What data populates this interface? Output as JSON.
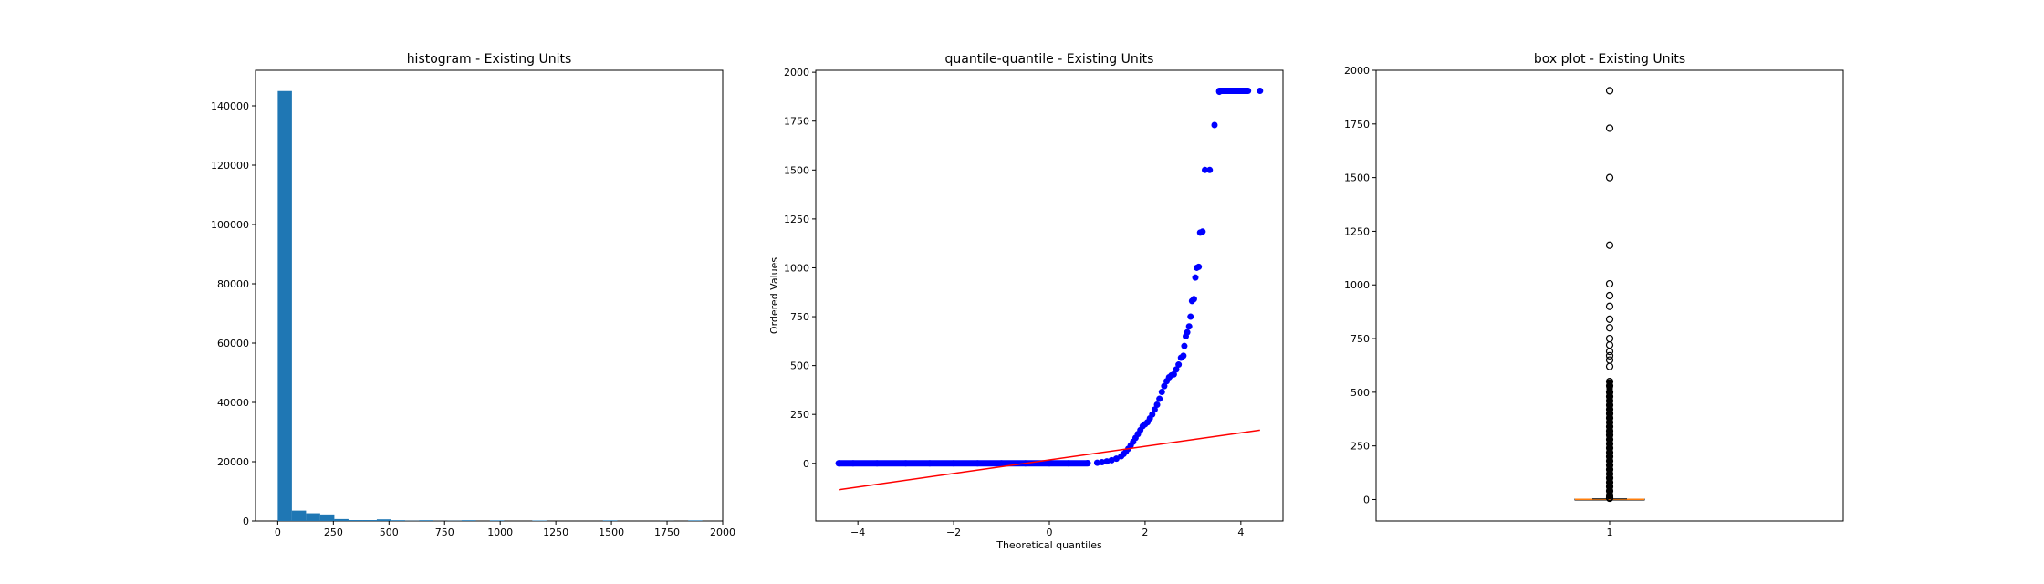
{
  "colors": {
    "bar": "#1f77b4",
    "qq_points": "#0000ff",
    "qq_line": "#ff0000",
    "median": "#ff7f0e",
    "axes": "#000000"
  },
  "chart_data": [
    {
      "type": "bar",
      "title": "histogram - Existing Units",
      "xlabel": "",
      "ylabel": "",
      "xlim": [
        -100,
        2000
      ],
      "ylim": [
        0,
        152000
      ],
      "x_ticks": [
        0,
        250,
        500,
        750,
        1000,
        1250,
        1500,
        1750,
        2000
      ],
      "x_tick_labels": [
        "0",
        "250",
        "500",
        "750",
        "1000",
        "1250",
        "1500",
        "1750",
        "2000"
      ],
      "y_ticks": [
        0,
        20000,
        40000,
        60000,
        80000,
        100000,
        120000,
        140000
      ],
      "y_tick_labels": [
        "0",
        "20000",
        "40000",
        "60000",
        "80000",
        "100000",
        "120000",
        "140000"
      ],
      "bins": [
        {
          "x0": 0,
          "x1": 63.6,
          "count": 145000
        },
        {
          "x0": 63.6,
          "x1": 127.2,
          "count": 3500
        },
        {
          "x0": 127.2,
          "x1": 190.8,
          "count": 2600
        },
        {
          "x0": 190.8,
          "x1": 254.4,
          "count": 2200
        },
        {
          "x0": 254.4,
          "x1": 318,
          "count": 650
        },
        {
          "x0": 318,
          "x1": 381.6,
          "count": 300
        },
        {
          "x0": 381.6,
          "x1": 445.2,
          "count": 300
        },
        {
          "x0": 445.2,
          "x1": 508.8,
          "count": 550
        },
        {
          "x0": 508.8,
          "x1": 572.4,
          "count": 250
        },
        {
          "x0": 572.4,
          "x1": 636,
          "count": 80
        },
        {
          "x0": 636,
          "x1": 699.6,
          "count": 250
        },
        {
          "x0": 699.6,
          "x1": 763.2,
          "count": 40
        },
        {
          "x0": 763.2,
          "x1": 826.8,
          "count": 80
        },
        {
          "x0": 826.8,
          "x1": 890.4,
          "count": 250
        },
        {
          "x0": 953.4,
          "x1": 1017,
          "count": 200
        },
        {
          "x0": 1144,
          "x1": 1208,
          "count": 150
        },
        {
          "x0": 1462,
          "x1": 1526,
          "count": 200
        },
        {
          "x0": 1717,
          "x1": 1781,
          "count": 40
        },
        {
          "x0": 1845,
          "x1": 1908,
          "count": 200
        }
      ]
    },
    {
      "type": "scatter",
      "title": "quantile-quantile - Existing Units",
      "xlabel": "Theoretical quantiles",
      "ylabel": "Ordered Values",
      "xlim": [
        -4.88,
        4.88
      ],
      "ylim": [
        -295,
        2010
      ],
      "x_ticks": [
        -4,
        -2,
        0,
        2,
        4
      ],
      "x_tick_labels": [
        "−4",
        "−2",
        "0",
        "2",
        "4"
      ],
      "y_ticks": [
        0,
        250,
        500,
        750,
        1000,
        1250,
        1500,
        1750,
        2000
      ],
      "y_tick_labels": [
        "0",
        "250",
        "500",
        "750",
        "1000",
        "1250",
        "1500",
        "1750",
        "2000"
      ],
      "points": [
        [
          -4.4,
          0
        ],
        [
          -4.1,
          0
        ],
        [
          -3.6,
          0
        ],
        [
          -3.0,
          0
        ],
        [
          -2.5,
          0
        ],
        [
          -2.0,
          0
        ],
        [
          -1.5,
          0
        ],
        [
          -1.0,
          0
        ],
        [
          -0.5,
          0
        ],
        [
          0.0,
          0
        ],
        [
          0.4,
          0
        ],
        [
          0.8,
          1
        ],
        [
          1.0,
          3
        ],
        [
          1.1,
          6
        ],
        [
          1.2,
          10
        ],
        [
          1.3,
          16
        ],
        [
          1.4,
          24
        ],
        [
          1.5,
          36
        ],
        [
          1.55,
          48
        ],
        [
          1.6,
          60
        ],
        [
          1.65,
          75
        ],
        [
          1.7,
          92
        ],
        [
          1.75,
          110
        ],
        [
          1.8,
          130
        ],
        [
          1.85,
          150
        ],
        [
          1.9,
          170
        ],
        [
          1.95,
          190
        ],
        [
          2.0,
          200
        ],
        [
          2.05,
          210
        ],
        [
          2.1,
          230
        ],
        [
          2.15,
          250
        ],
        [
          2.2,
          275
        ],
        [
          2.25,
          300
        ],
        [
          2.3,
          330
        ],
        [
          2.35,
          365
        ],
        [
          2.4,
          395
        ],
        [
          2.45,
          420
        ],
        [
          2.5,
          440
        ],
        [
          2.55,
          450
        ],
        [
          2.6,
          455
        ],
        [
          2.65,
          480
        ],
        [
          2.7,
          505
        ],
        [
          2.75,
          540
        ],
        [
          2.8,
          550
        ],
        [
          2.82,
          600
        ],
        [
          2.85,
          650
        ],
        [
          2.88,
          670
        ],
        [
          2.92,
          700
        ],
        [
          2.95,
          750
        ],
        [
          2.98,
          830
        ],
        [
          3.02,
          840
        ],
        [
          3.05,
          950
        ],
        [
          3.08,
          1000
        ],
        [
          3.12,
          1005
        ],
        [
          3.15,
          1180
        ],
        [
          3.2,
          1185
        ],
        [
          3.25,
          1500
        ],
        [
          3.35,
          1500
        ],
        [
          3.45,
          1730
        ],
        [
          3.55,
          1900
        ],
        [
          3.75,
          1905
        ],
        [
          3.95,
          1905
        ],
        [
          4.1,
          1905
        ],
        [
          4.4,
          1905
        ]
      ],
      "fit_line": {
        "x": [
          -4.4,
          4.4
        ],
        "y": [
          -135,
          170
        ]
      }
    },
    {
      "type": "box",
      "title": "box plot - Existing Units",
      "xlabel": "",
      "ylabel": "",
      "ylim": [
        -100,
        2000
      ],
      "x_tick_labels": [
        "1"
      ],
      "y_ticks": [
        0,
        250,
        500,
        750,
        1000,
        1250,
        1500,
        1750,
        2000
      ],
      "y_tick_labels": [
        "0",
        "250",
        "500",
        "750",
        "1000",
        "1250",
        "1500",
        "1750",
        "2000"
      ],
      "q1": 1,
      "median": 1,
      "q3": 2,
      "whisker_low": 1,
      "whisker_high": 3,
      "outliers": [
        1905,
        1730,
        1500,
        1185,
        1005,
        950,
        900,
        840,
        800,
        750,
        720,
        690,
        670,
        650,
        620,
        550,
        530,
        500,
        480,
        460,
        440,
        420,
        400,
        380,
        360,
        340,
        320,
        300,
        280,
        260,
        240,
        220,
        200,
        180,
        160,
        140,
        120,
        100,
        80,
        60,
        40,
        20,
        10,
        6
      ]
    }
  ]
}
